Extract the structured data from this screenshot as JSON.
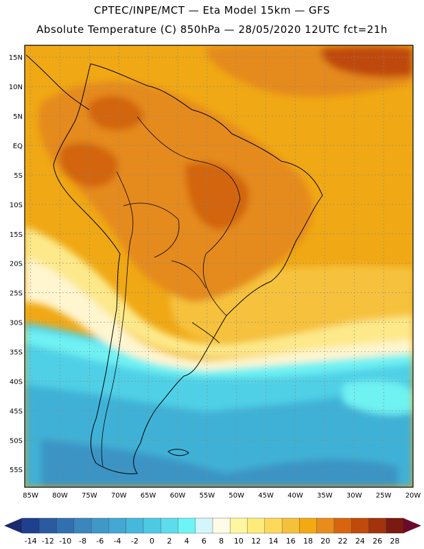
{
  "title_line1": "CPTEC/INPE/MCT —  Eta Model 15km — GFS",
  "title_line2": "Absolute Temperature (C) 850hPa — 28/05/2020 12UTC fct=21h",
  "lat_labels": [
    "15N",
    "10N",
    "5N",
    "EQ",
    "5S",
    "10S",
    "15S",
    "20S",
    "25S",
    "30S",
    "35S",
    "40S",
    "45S",
    "50S",
    "55S"
  ],
  "lon_labels": [
    "85W",
    "80W",
    "75W",
    "70W",
    "65W",
    "60W",
    "55W",
    "50W",
    "45W",
    "40W",
    "35W",
    "30W",
    "25W",
    "20W"
  ],
  "colorbar": {
    "labels": [
      "-14",
      "-12",
      "-10",
      "-8",
      "-6",
      "-4",
      "-2",
      "0",
      "2",
      "4",
      "6",
      "8",
      "10",
      "12",
      "14",
      "16",
      "18",
      "20",
      "22",
      "24",
      "26",
      "28"
    ],
    "colors": [
      "#1f3f8f",
      "#2a5aa0",
      "#3170b0",
      "#3a86bd",
      "#3f98c8",
      "#43a8d3",
      "#46b8dc",
      "#4ccae4",
      "#5cdcec",
      "#6df5f5",
      "#d2f6fb",
      "#fffbe6",
      "#fff6a0",
      "#fdec7a",
      "#fcd95a",
      "#f6c13a",
      "#f2a912",
      "#e88c1c",
      "#d8650e",
      "#c04a0a",
      "#a2330c",
      "#7a1a10"
    ],
    "low_arrow_color": "#1a2a6e",
    "high_arrow_color": "#6a0a2a"
  },
  "colors": {
    "hot": "#e58a1a",
    "very_hot": "#d2650f",
    "extreme": "#bf4a0a",
    "warm": "#f0a814",
    "mild": "#f6c23c",
    "cool_yellow": "#fde98a",
    "pale": "#fff5cf",
    "cold_cyan": "#6ff1f2",
    "cold": "#4fd0e6",
    "colder": "#3fb1d6",
    "coldest": "#3a94c4"
  }
}
